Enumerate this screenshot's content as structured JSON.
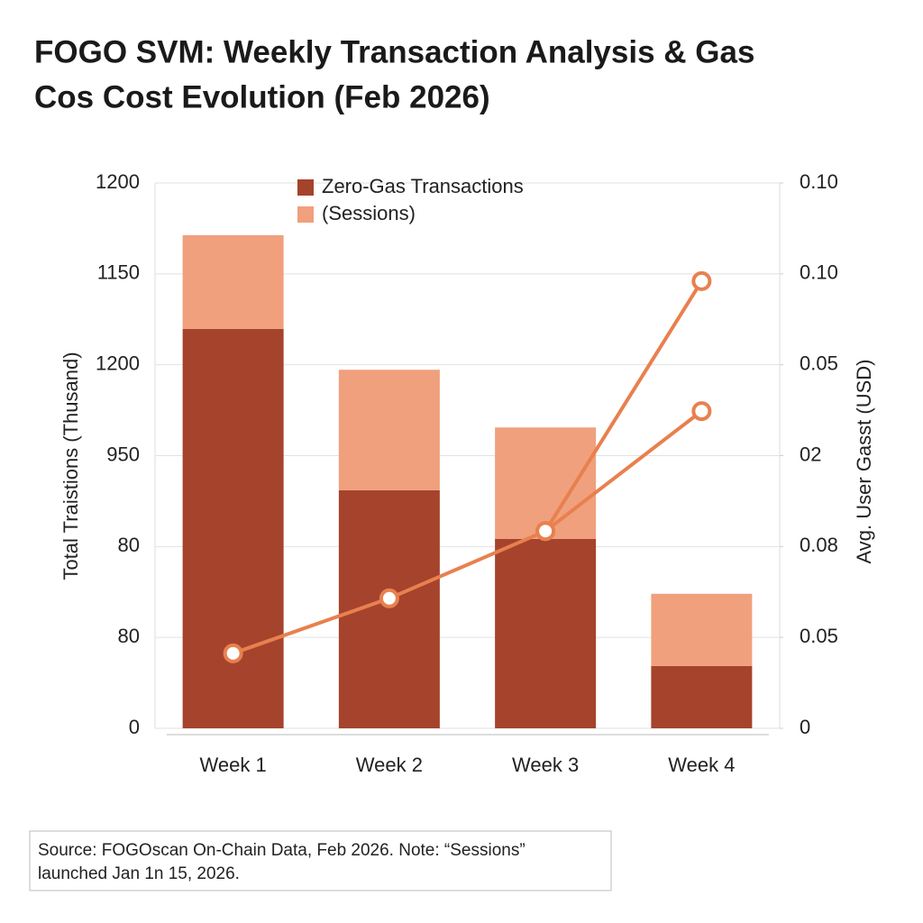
{
  "chart_data": {
    "type": "bar",
    "title": [
      "FOGO SVM: Weekly Transaction Analysis & Gas",
      "Cos Cost Evolution (Feb 2026)"
    ],
    "categories": [
      "Week 1",
      "Week 2",
      "Week 3",
      "Week 4"
    ],
    "stacked": true,
    "series": [
      {
        "name": "Zero-Gas Transactions",
        "type": "bar",
        "color": "#a5432c",
        "values": [
          879,
          524,
          417,
          137
        ]
      },
      {
        "name": "(Sessions)",
        "type": "bar",
        "color": "#f0a07c",
        "values": [
          206,
          265,
          245,
          159
        ]
      },
      {
        "type": "line",
        "axis": "y2",
        "color": "#e8804f",
        "values": [
          0.0165,
          0.0286,
          0.0434,
          0.0698
        ]
      },
      {
        "type": "line",
        "axis": "y2",
        "color": "#e8804f",
        "values": [
          null,
          null,
          0.0434,
          0.0984
        ]
      }
    ],
    "ylabel": "Total Traistions (Thusand)",
    "y2label": "Avg. User Gasst (USD)",
    "ylim": [
      0,
      1200
    ],
    "yticks": [
      0,
      {
        "value": 200,
        "label": "80"
      },
      {
        "value": 400,
        "label": "80"
      },
      {
        "value": 600,
        "label": "950"
      },
      {
        "value": 800,
        "label": "1200"
      },
      {
        "value": 1000,
        "label": "1150"
      },
      1200
    ],
    "y2lim": [
      0,
      0.12
    ],
    "y2ticks": [
      0,
      {
        "value": 0.02,
        "label": "0.05"
      },
      {
        "value": 0.04,
        "label": "0.08"
      },
      {
        "value": 0.06,
        "label": "02"
      },
      {
        "value": 0.08,
        "label": "0.05"
      },
      {
        "value": 0.1,
        "label": "0.10"
      },
      {
        "value": 0.12,
        "label": "0.10"
      }
    ],
    "grid": true,
    "legend": "top",
    "note": [
      "Source: FOGOscan On-Chain Data, Feb 2026. Note: “Sessions”",
      "launched Jan 1n 15, 2026."
    ]
  }
}
